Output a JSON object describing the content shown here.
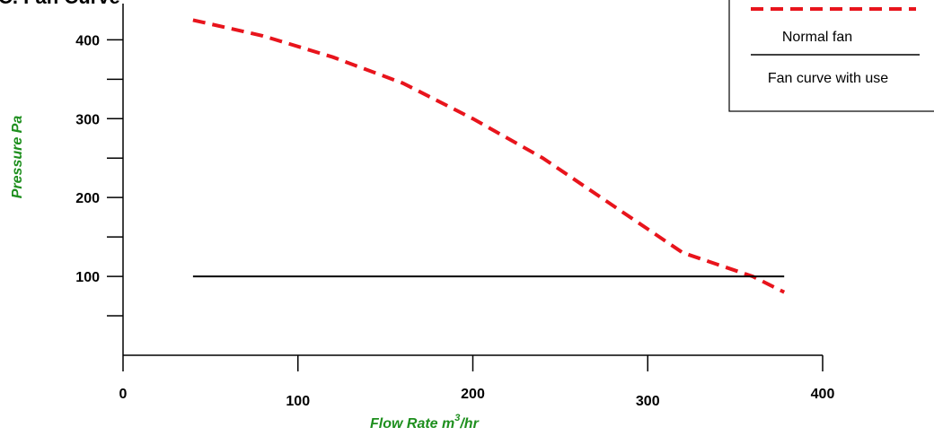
{
  "chart_data": {
    "type": "line",
    "title": "C. Fan Curve",
    "xlabel": "Flow Rate m",
    "xlabel_sup": "3",
    "xlabel_suffix": "/hr",
    "ylabel": "Pressure Pa",
    "xlim": [
      0,
      400
    ],
    "ylim": [
      0,
      430
    ],
    "x_ticks": [
      {
        "value": 0,
        "label": "0"
      },
      {
        "value": 100,
        "label": "100"
      },
      {
        "value": 200,
        "label": "200"
      },
      {
        "value": 300,
        "label": "300"
      },
      {
        "value": 400,
        "label": "400"
      }
    ],
    "y_major_ticks": [
      {
        "value": 100,
        "label": "100"
      },
      {
        "value": 200,
        "label": "200"
      },
      {
        "value": 300,
        "label": "300"
      },
      {
        "value": 400,
        "label": "400"
      }
    ],
    "y_minor_ticks": [
      50,
      150,
      250,
      350
    ],
    "grid": false,
    "legend_position": "top-right",
    "series": [
      {
        "name": "Normal fan",
        "style": "dashed",
        "color": "#e8141c",
        "x": [
          40,
          80,
          120,
          160,
          200,
          240,
          280,
          320,
          360,
          378
        ],
        "y": [
          425,
          405,
          378,
          345,
          300,
          250,
          190,
          130,
          100,
          80
        ]
      },
      {
        "name": "Fan curve with use",
        "style": "solid",
        "color": "#000000",
        "x": [
          40,
          378
        ],
        "y": [
          100,
          100
        ]
      }
    ]
  }
}
